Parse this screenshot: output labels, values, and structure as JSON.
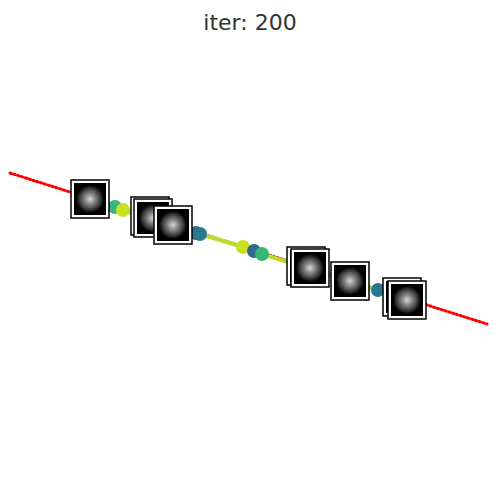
{
  "chart_data": {
    "type": "scatter",
    "title": "iter: 200",
    "xlim": [
      0,
      500
    ],
    "ylim": [
      0,
      500
    ],
    "tick_labels": false,
    "grid": false,
    "series": [
      {
        "type": "line",
        "color": "#ff0000",
        "line_style": "dotted",
        "x": [
          10,
          487
        ],
        "y": [
          327,
          176
        ]
      },
      {
        "type": "line",
        "color": "#b5de2b",
        "marker": "circle",
        "line_style": "solid",
        "x": [
          115,
          123,
          196,
          200,
          243,
          254,
          262,
          378
        ],
        "y": [
          293,
          290,
          267,
          266,
          253,
          249,
          246,
          210
        ],
        "colors": [
          "#35b779",
          "#c8e020",
          "#31688e",
          "#2a788e",
          "#c8e020",
          "#31688e",
          "#35b779",
          "#2a788e"
        ]
      },
      {
        "type": "scatter",
        "marker": "image",
        "x": [
          90,
          150,
          153,
          173,
          306,
          310,
          350,
          402,
          407
        ],
        "y": [
          301,
          284,
          282,
          275,
          234,
          232,
          219,
          203,
          200
        ]
      }
    ]
  }
}
